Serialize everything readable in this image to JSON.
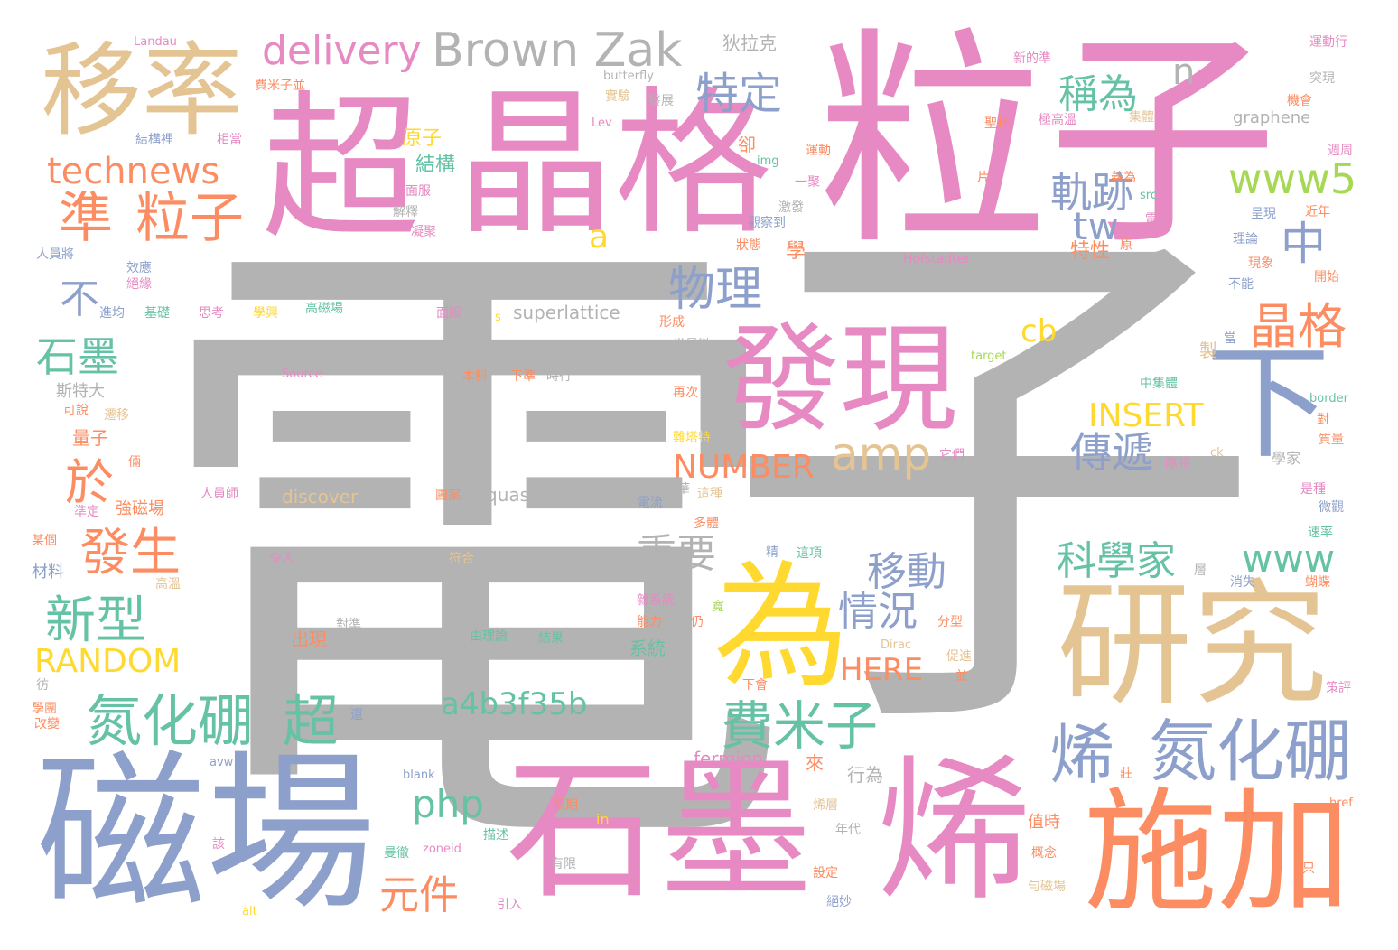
{
  "words": {
    "dian": "電",
    "zi": "子",
    "lizi": "粒子",
    "jingge": "晶格",
    "chao": "超",
    "cichang": "磁場",
    "shimo": "石墨",
    "xi": "烯",
    "shijia": "施加",
    "yanjiu": "研究",
    "wei": "為",
    "faxian": "發現",
    "yilv": "移率",
    "xia": "下",
    "danhuapeng1": "氮化硼",
    "danhuapeng2": "氮化硼",
    "chao2": "超",
    "zhun": "準",
    "lizi2": "粒子",
    "feimizi": "費米子",
    "brownzak": "Brown Zak",
    "delivery": "delivery",
    "technews": "technews",
    "teding": "特定",
    "chengwei": "稱為",
    "guiji": "軌跡",
    "www5": "www5",
    "zhong": "中",
    "tw": "tw",
    "wuli": "物理",
    "jingge2": "晶格",
    "amp": "amp",
    "chuandi": "傳遞",
    "insert": "INSERT",
    "number": "NUMBER",
    "kexuejia": "科學家",
    "www": "www",
    "yidong": "移動",
    "zhongyao": "重要",
    "qingkuang": "情況",
    "xinxing": "新型",
    "fasheng": "發生",
    "yu": "於",
    "shimo2": "石墨",
    "bu": "不",
    "random": "RANDOM",
    "a4b3f35b": "a4b3f35b",
    "php": "php",
    "yuanjian": "元件",
    "here": "HERE",
    "cb": "cb",
    "n": "n",
    "a": "a",
    "xi2": "烯",
    "dilake": "狄拉克",
    "superlattice": "superlattice",
    "quasiparticle": "quasiparticle",
    "discover": "discover",
    "fermion": "fermion",
    "graphene": "graphene",
    "hofstadter": "Hofstadter",
    "landau": "Landau",
    "butterfly": "butterfly",
    "lev": "Lev",
    "yuanzi": "原子",
    "jiegou": "結構",
    "que": "卻",
    "img": "img",
    "source": "Source",
    "target": "target",
    "border": "border",
    "blank": "blank",
    "alt": "alt",
    "href": "href",
    "zoneid": "zoneid",
    "avw": "avw",
    "dirac": "Dirac",
    "src": "src",
    "s": "s",
    "ck": "ck",
    "in": "in",
    "feimizibing": "費米子並",
    "jiegouli": "結構裡",
    "xiangdang": "相當",
    "shiyan": "實驗",
    "fazhan": "發展",
    "yundong": "運動",
    "yundongxing": "運動行",
    "xindezhun": "新的準",
    "tuxian": "突現",
    "jihui": "機會",
    "jigaowen": "極高溫",
    "jiti": "集體",
    "shengbei": "聖杯",
    "jiuju": "舊居",
    "yiwei": "義為",
    "zhouzhou": "週周",
    "pian": "片",
    "jinnian": "近年",
    "leifu": "雷夫",
    "chengxian": "呈現",
    "lilun": "理論",
    "yuan": "原",
    "tezhixing": "特性",
    "xue": "學",
    "zhuangtai": "狀態",
    "guancha": "觀察到",
    "jiefu": "解釋",
    "yanmianfang": "沿面服",
    "ningju": "凝聚",
    "yiduo": "一聚",
    "jifa": "激發",
    "renyuanjiang": "人員將",
    "xiaoying": "效應",
    "jueyuan": "絕緣",
    "jinjun": "進均",
    "jichu": "基礎",
    "sikao": "思考",
    "xuezhe": "學興",
    "gaocichang": "高磁場",
    "mianfang": "面服",
    "xingcheng": "形成",
    "dangmanche": "當曼徹",
    "zhi": "製",
    "dang": "當",
    "bu2": "不能",
    "xianxiang": "現象",
    "kaishi": "開始",
    "bushe": "本料",
    "xiazhun": "下準",
    "shixing": "時行",
    "fu": "複",
    "zaici": "再次",
    "zhongjiti": "中集體",
    "dui": "對",
    "zhiliang": "質量",
    "nanta": "難塔特",
    "tamen": "它們",
    "duijiang": "隊將",
    "xuejia": "學家",
    "sitedada": "斯特大",
    "keshuo": "可說",
    "qianyi": "遷移",
    "liangzi": "量子",
    "liang2": "倆",
    "renyuan": "人員師",
    "qiangcichang": "強磁場",
    "hua": "華",
    "zhezhong": "這種",
    "dianliu": "電流",
    "tuan": "團案",
    "shiti": "是種",
    "weiguan": "微觀",
    "sulv": "速率",
    "duoti": "多體",
    "moulie": "某個",
    "cailiao": "材料",
    "gaowen": "高溫",
    "lingren": "令人",
    "pao": "跑",
    "fuhe": "符合",
    "shebei": "設備",
    "zhexiang": "這項",
    "jing": "精",
    "ji": "層",
    "xiaoshi": "消失",
    "hudie": "蝴蝶",
    "zaxitong": "雜系統",
    "nengli": "能力",
    "reng": "仍",
    "kuan": "寬",
    "duizhun": "對準",
    "fenxing": "分型",
    "chuxian": "出現",
    "youlilun": "由理論",
    "jieguo": "結果",
    "xitong": "系統",
    "cujin": "促進",
    "bing": "並",
    "xuetuan": "學團",
    "gaibian": "改變",
    "fang": "彷",
    "haixiamen": "下會",
    "huan": "還",
    "jiazu": "家族",
    "celun": "策評",
    "lai": "來",
    "xingwei": "行為",
    "zhuangjia": "莊",
    "yuqi": "預期",
    "zhishi": "值時",
    "tanhua": "烯層",
    "niandai": "年代",
    "gainian": "概念",
    "miaoshu": "描述",
    "gai": "該",
    "manche": "曼徹",
    "youxian": "有限",
    "sheding": "設定",
    "juemiao": "絕妙",
    "yunci": "勻磁場",
    "yinru": "引入",
    "zhi2": "只",
    "chun": "準定"
  }
}
